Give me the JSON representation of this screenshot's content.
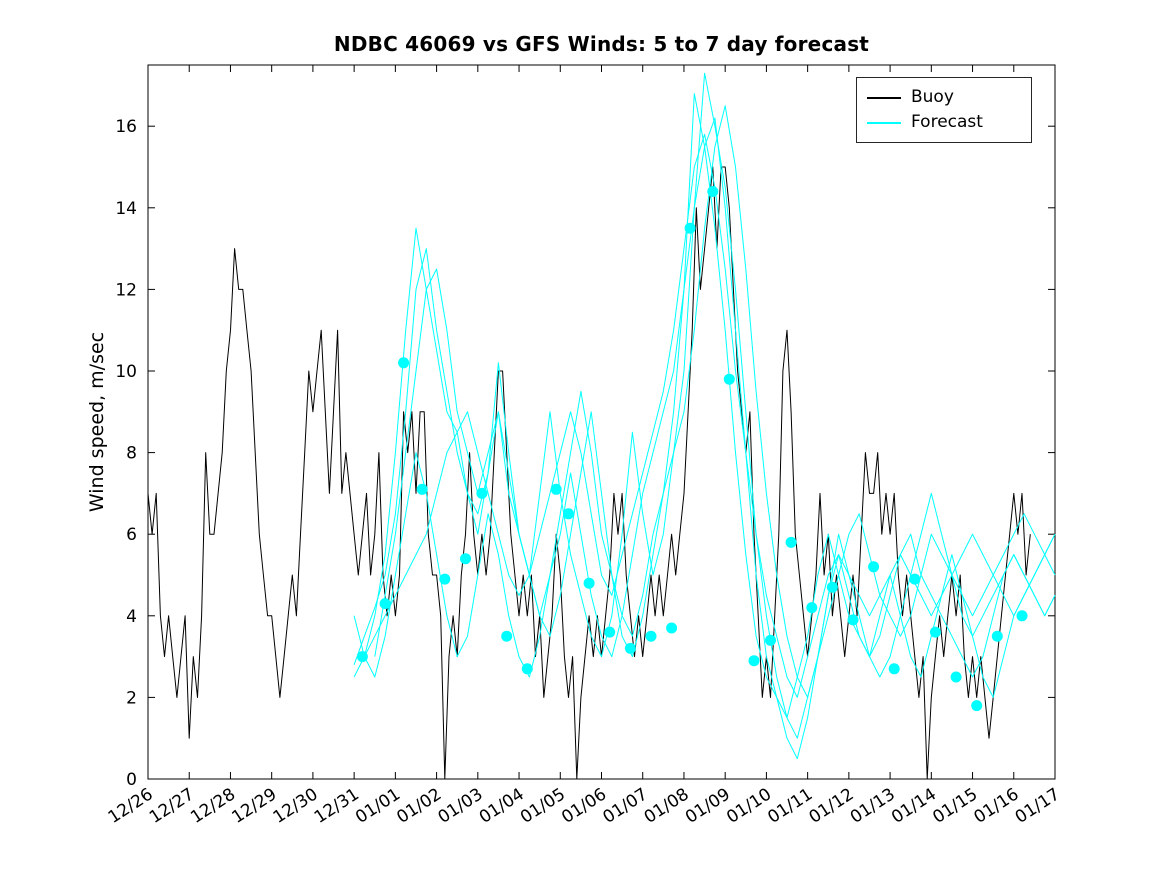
{
  "chart_data": {
    "type": "line",
    "title": "NDBC 46069 vs GFS Winds: 5 to 7 day forecast",
    "xlabel": "",
    "ylabel": "Wind speed, m/sec",
    "x_range": [
      0,
      22
    ],
    "y_range": [
      0,
      17.5
    ],
    "y_ticks": [
      0,
      2,
      4,
      6,
      8,
      10,
      12,
      14,
      16
    ],
    "x_tick_labels": [
      "12/26",
      "12/27",
      "12/28",
      "12/29",
      "12/30",
      "12/31",
      "01/01",
      "01/02",
      "01/03",
      "01/04",
      "01/05",
      "01/06",
      "01/07",
      "01/08",
      "01/09",
      "01/10",
      "01/11",
      "01/12",
      "01/13",
      "01/14",
      "01/15",
      "01/16",
      "01/17"
    ],
    "grid": false,
    "colors": {
      "buoy": "#000000",
      "forecast": "#00ffff"
    },
    "legend": {
      "position": "top-right",
      "entries": [
        {
          "label": "Buoy",
          "color": "#000000"
        },
        {
          "label": "Forecast",
          "color": "#00ffff"
        }
      ]
    },
    "series": [
      {
        "name": "Buoy",
        "color": "#000000",
        "width": 1,
        "x_start": 0,
        "x_step": 0.1,
        "values": [
          7,
          6,
          7,
          4,
          3,
          4,
          3,
          2,
          3,
          4,
          1,
          3,
          2,
          4,
          8,
          6,
          6,
          7,
          8,
          10,
          11,
          13,
          12,
          12,
          11,
          10,
          8,
          6,
          5,
          4,
          4,
          3,
          2,
          3,
          4,
          5,
          4,
          6,
          8,
          10,
          9,
          10,
          11,
          9,
          7,
          9,
          11,
          7,
          8,
          7,
          6,
          5,
          6,
          7,
          5,
          6,
          8,
          5,
          4,
          5,
          4,
          5,
          9,
          8,
          9,
          7,
          9,
          9,
          6,
          5,
          5,
          4,
          0,
          3,
          4,
          3,
          5,
          6,
          8,
          6,
          5,
          6,
          5,
          6,
          8,
          10,
          10,
          8,
          6,
          5,
          4,
          5,
          4,
          5,
          3,
          4,
          2,
          3,
          4,
          6,
          5,
          3,
          2,
          3,
          0,
          2,
          3,
          4,
          3,
          4,
          3,
          4,
          5,
          7,
          6,
          7,
          5,
          4,
          3,
          4,
          3,
          4,
          5,
          4,
          5,
          4,
          5,
          6,
          5,
          6,
          7,
          9,
          11,
          14,
          12,
          13,
          14,
          15,
          13,
          15,
          15,
          14,
          12,
          10,
          9,
          8,
          9,
          6,
          4,
          2,
          3,
          2,
          4,
          6,
          10,
          11,
          9,
          6,
          5,
          4,
          3,
          4,
          5,
          7,
          5,
          6,
          4,
          5,
          4,
          3,
          4,
          5,
          4,
          6,
          8,
          7,
          7,
          8,
          6,
          7,
          6,
          7,
          5,
          4,
          5,
          4,
          3,
          2,
          3,
          0,
          2,
          3,
          4,
          3,
          4,
          5,
          4,
          5,
          3,
          2,
          3,
          2,
          3,
          2,
          1,
          2,
          3,
          4,
          5,
          6,
          7,
          6,
          7,
          5,
          6
        ]
      },
      {
        "name": "Forecast run 1",
        "color": "#00ffff",
        "width": 1,
        "x_start": 5,
        "x_step": 0.25,
        "values": [
          2.5,
          3,
          4,
          5.5,
          8,
          11,
          13.5,
          12,
          10.5,
          9,
          8.5,
          7,
          6,
          7.5,
          10.2,
          8,
          6,
          5,
          7,
          9,
          7,
          5.5,
          4.5,
          3.5,
          3,
          4,
          6,
          8.5,
          6.5,
          5,
          6,
          8,
          10,
          14,
          17.3,
          16,
          14.5,
          12,
          9,
          6,
          4,
          2.5,
          1.5,
          1,
          2,
          3,
          4.5,
          5.5,
          4.5,
          3.5,
          3,
          4,
          5,
          4,
          3,
          2.5,
          3.5,
          4.5,
          5.5,
          4.5,
          3.5,
          2.5,
          2,
          3,
          4,
          4.5,
          5,
          5.5,
          6
        ]
      },
      {
        "name": "Forecast run 2",
        "color": "#00ffff",
        "width": 1,
        "x_start": 5,
        "x_step": 0.25,
        "values": [
          2.8,
          3.5,
          4.2,
          5,
          6.5,
          9,
          12,
          13,
          11,
          9.5,
          8,
          7,
          6.5,
          7.5,
          9,
          7.5,
          6,
          5,
          4,
          3.5,
          4.5,
          6,
          7.5,
          9,
          7,
          5,
          3.5,
          3,
          4,
          5.5,
          7,
          9,
          12,
          16.8,
          15.5,
          13.5,
          11,
          8,
          5.5,
          3.5,
          2.5,
          2,
          1.5,
          2.5,
          3.5,
          5,
          6,
          5,
          4,
          3.5,
          3,
          3.5,
          4.5,
          5.5,
          6,
          5,
          4.5,
          4,
          3.5,
          3,
          2.5,
          3,
          4,
          5,
          5.5,
          5,
          4.5,
          4,
          4.5
        ]
      },
      {
        "name": "Forecast run 3",
        "color": "#00ffff",
        "width": 1,
        "x_start": 5.25,
        "x_step": 0.25,
        "values": [
          3,
          3.5,
          4,
          4.5,
          5,
          5.5,
          6,
          7,
          8,
          8.5,
          9,
          8,
          7,
          6,
          5,
          4.5,
          5,
          6,
          7,
          8,
          9,
          8,
          6.5,
          5,
          4.5,
          5.5,
          6.5,
          7.5,
          8.5,
          9.5,
          11,
          13,
          15,
          15.8,
          14.5,
          12.5,
          10,
          8,
          6,
          4.5,
          3.5,
          2.5,
          2,
          3,
          4,
          5,
          5.5,
          5,
          4.5,
          4,
          4.5,
          5,
          5.5,
          5,
          4.5,
          4,
          4.5,
          5,
          5.5,
          6,
          5.5,
          5,
          4.5,
          4,
          4.5,
          5,
          5.5,
          6
        ]
      },
      {
        "name": "Forecast run 4",
        "color": "#00ffff",
        "width": 1,
        "x_start": 5,
        "x_step": 0.25,
        "values": [
          4,
          3,
          2.5,
          3.5,
          5,
          6.5,
          8,
          7,
          5.5,
          4,
          3,
          3.5,
          5,
          6.5,
          5.5,
          4,
          3,
          2.5,
          3.5,
          5,
          6,
          7.5,
          6,
          4.5,
          3.5,
          3,
          4,
          5.5,
          7,
          8,
          9,
          10,
          12,
          14,
          15.5,
          16.2,
          14,
          11,
          8,
          5,
          3,
          2,
          1,
          0.5,
          1.5,
          3,
          4.5,
          6,
          5,
          4,
          3,
          2.5,
          3,
          4,
          5,
          6,
          7,
          6,
          5,
          4,
          3.5,
          4,
          4.5,
          5,
          5.5,
          5,
          4.5,
          4,
          4.5
        ]
      },
      {
        "name": "Forecast run 5",
        "color": "#00ffff",
        "width": 1,
        "x_start": 5.5,
        "x_step": 0.25,
        "values": [
          3,
          4.5,
          6,
          8,
          10,
          12,
          12.5,
          11,
          9,
          8,
          7,
          8,
          9,
          7,
          6,
          5,
          4,
          5,
          6.5,
          8,
          9.5,
          8,
          6,
          5,
          4,
          3.5,
          4.5,
          6,
          7,
          8,
          9,
          11,
          13.5,
          15.5,
          16.5,
          15,
          12.5,
          9.5,
          7,
          5,
          3.5,
          2.5,
          2,
          3,
          4,
          5,
          6,
          6.5,
          5.5,
          4.5,
          4,
          3.5,
          4,
          5,
          6,
          5.5,
          5,
          4.5,
          4,
          4.5,
          5,
          5.5,
          6,
          6.5,
          6,
          5.5,
          5
        ]
      }
    ],
    "markers": [
      {
        "name": "Forecast verification points",
        "color": "#00ffff",
        "size": 5.5,
        "points": [
          [
            5.2,
            3.0
          ],
          [
            5.75,
            4.3
          ],
          [
            6.2,
            10.2
          ],
          [
            6.65,
            7.1
          ],
          [
            7.2,
            4.9
          ],
          [
            7.7,
            5.4
          ],
          [
            8.1,
            7.0
          ],
          [
            8.7,
            3.5
          ],
          [
            9.2,
            2.7
          ],
          [
            9.9,
            7.1
          ],
          [
            10.2,
            6.5
          ],
          [
            10.7,
            4.8
          ],
          [
            11.2,
            3.6
          ],
          [
            11.7,
            3.2
          ],
          [
            12.2,
            3.5
          ],
          [
            12.7,
            3.7
          ],
          [
            13.15,
            13.5
          ],
          [
            13.7,
            14.4
          ],
          [
            14.1,
            9.8
          ],
          [
            14.7,
            2.9
          ],
          [
            15.1,
            3.4
          ],
          [
            15.6,
            5.8
          ],
          [
            16.1,
            4.2
          ],
          [
            16.6,
            4.7
          ],
          [
            17.1,
            3.9
          ],
          [
            17.6,
            5.2
          ],
          [
            18.1,
            2.7
          ],
          [
            18.6,
            4.9
          ],
          [
            19.1,
            3.6
          ],
          [
            19.6,
            2.5
          ],
          [
            20.1,
            1.8
          ],
          [
            20.6,
            3.5
          ],
          [
            21.2,
            4.0
          ]
        ]
      }
    ]
  }
}
